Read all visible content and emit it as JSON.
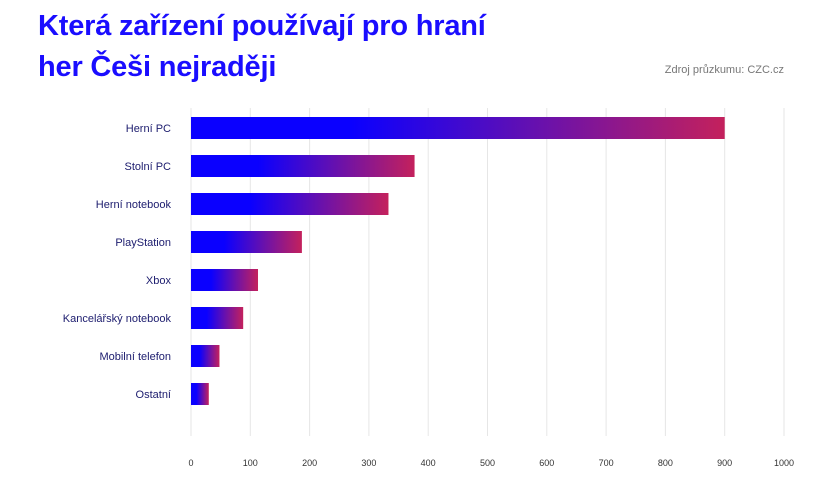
{
  "header": {
    "title_line1": "Která zařízení používají pro hraní",
    "title_line2": "her Češi nejraději",
    "source": "Zdroj průzkumu: CZC.cz"
  },
  "colors": {
    "title": "#1a0dff",
    "bar_start": "#0a00ff",
    "bar_end": "#c4215c",
    "grid": "#e6e6e6"
  },
  "chart_data": {
    "type": "bar",
    "orientation": "horizontal",
    "categories": [
      "Herní PC",
      "Stolní PC",
      "Herní notebook",
      "PlayStation",
      "Xbox",
      "Kancelářský notebook",
      "Mobilní telefon",
      "Ostatní"
    ],
    "values": [
      900,
      377,
      333,
      187,
      113,
      88,
      48,
      30
    ],
    "xlim": [
      0,
      1000
    ],
    "xticks": [
      0,
      100,
      200,
      300,
      400,
      500,
      600,
      700,
      800,
      900,
      1000
    ],
    "grid": true,
    "legend": "none",
    "title": "Která zařízení používají pro hraní her Češi nejraději",
    "xlabel": "",
    "ylabel": ""
  }
}
